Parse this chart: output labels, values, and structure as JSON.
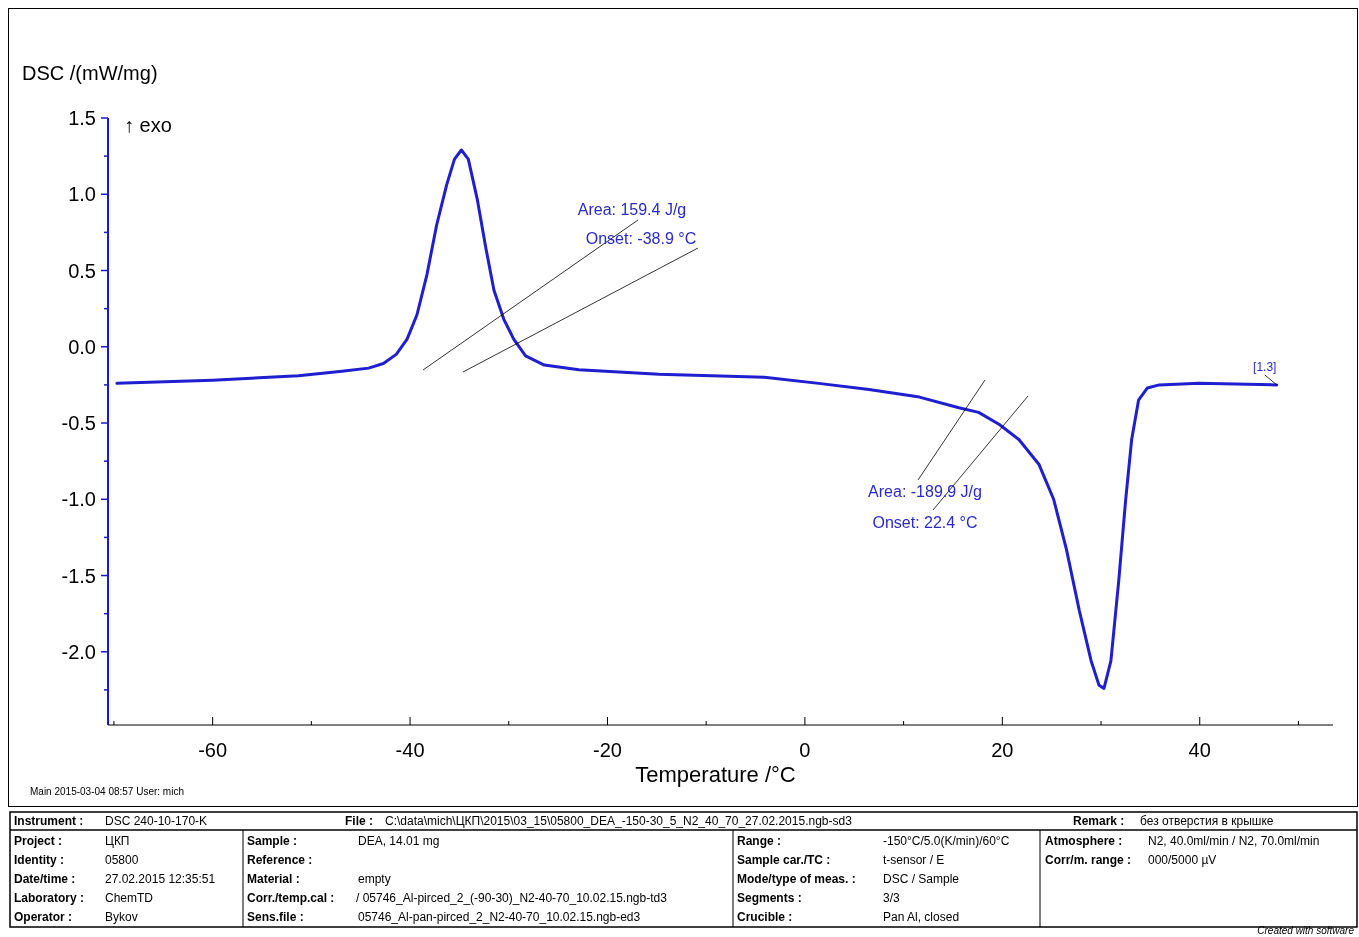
{
  "chart_data": {
    "type": "line",
    "xlabel": "Temperature /°C",
    "ylabel": "DSC /(mW/mg)",
    "xlim": [
      -70.6,
      53.5
    ],
    "ylim": [
      -2.48,
      1.5
    ],
    "xticks": [
      {
        "value": -70,
        "label": null
      },
      {
        "value": -60,
        "label": "-60"
      },
      {
        "value": -50,
        "label": null
      },
      {
        "value": -40,
        "label": "-40"
      },
      {
        "value": -30,
        "label": null
      },
      {
        "value": -20,
        "label": "-20"
      },
      {
        "value": -10,
        "label": null
      },
      {
        "value": 0,
        "label": "0"
      },
      {
        "value": 10,
        "label": null
      },
      {
        "value": 20,
        "label": "20"
      },
      {
        "value": 30,
        "label": null
      },
      {
        "value": 40,
        "label": "40"
      },
      {
        "value": 50,
        "label": null
      }
    ],
    "yticks": [
      {
        "value": -2.25,
        "label": null
      },
      {
        "value": -2.0,
        "label": "-2.0"
      },
      {
        "value": -1.75,
        "label": null
      },
      {
        "value": -1.5,
        "label": "-1.5"
      },
      {
        "value": -1.25,
        "label": null
      },
      {
        "value": -1.0,
        "label": "-1.0"
      },
      {
        "value": -0.75,
        "label": null
      },
      {
        "value": -0.5,
        "label": "-0.5"
      },
      {
        "value": -0.25,
        "label": null
      },
      {
        "value": 0,
        "label": "0.0"
      },
      {
        "value": 0.25,
        "label": null
      },
      {
        "value": 0.5,
        "label": "0.5"
      },
      {
        "value": 0.75,
        "label": null
      },
      {
        "value": 1.0,
        "label": "1.0"
      },
      {
        "value": 1.25,
        "label": null
      },
      {
        "value": 1.5,
        "label": "1.5"
      }
    ],
    "grid": false,
    "x": [
      -69.7,
      -60,
      -51.3,
      -46.9,
      -44.2,
      -42.7,
      -41.4,
      -40.3,
      -39.3,
      -38.3,
      -37.3,
      -36.3,
      -35.5,
      -34.8,
      -34.1,
      -33.2,
      -32.3,
      -31.5,
      -30.5,
      -29.5,
      -28.3,
      -26.4,
      -22.9,
      -14.8,
      -4.1,
      1.4,
      6.5,
      11.6,
      15.6,
      17.6,
      19.7,
      21.7,
      23.7,
      25.2,
      26.5,
      27.8,
      29.0,
      29.8,
      30.3,
      31.0,
      31.8,
      32.5,
      33.1,
      33.8,
      34.7,
      35.9,
      39.9,
      47.8
    ],
    "series": [
      {
        "color": "#1f1fd0",
        "values": [
          -0.24,
          -0.22,
          -0.19,
          -0.16,
          -0.14,
          -0.11,
          -0.05,
          0.05,
          0.21,
          0.47,
          0.8,
          1.06,
          1.23,
          1.29,
          1.23,
          0.97,
          0.64,
          0.37,
          0.18,
          0.05,
          -0.06,
          -0.12,
          -0.15,
          -0.18,
          -0.2,
          -0.24,
          -0.28,
          -0.33,
          -0.4,
          -0.43,
          -0.51,
          -0.61,
          -0.77,
          -1.0,
          -1.33,
          -1.73,
          -2.06,
          -2.22,
          -2.24,
          -2.06,
          -1.53,
          -1.0,
          -0.61,
          -0.35,
          -0.27,
          -0.25,
          -0.24,
          -0.25
        ]
      }
    ],
    "annotations": [
      "Area: 159.4 J/g",
      "Onset: -38.9 °C",
      "Area: -189.9 J/g",
      "Onset: 22.4 °C",
      {
        "text": "[1.3]",
        "x": 47.8,
        "y": -0.25
      },
      "↑ exo",
      "Main   2015-03-04 08:57   User: mich",
      "Instrument :",
      "DSC 240-10-170-K",
      "File :",
      "C:\\data\\mich\\ЦКП\\2015\\03_15\\05800_DEA_-150-30_5_N2_40_70_27.02.2015.ngb-sd3",
      "Remark :",
      "без отверстия в крышке",
      "Project :",
      "ЦКП",
      "Identity :",
      "05800",
      "Date/time :",
      "27.02.2015 12:35:51",
      "Laboratory :",
      "ChemTD",
      "Operator :",
      "Bykov",
      "Sample :",
      "DEA, 14.01 mg",
      "Reference :",
      "Material :",
      "empty",
      "Corr./temp.cal :",
      "/ 05746_Al-pirced_2_(-90-30)_N2-40-70_10.02.15.ngb-td3",
      "Sens.file :",
      "05746_Al-pan-pirced_2_N2-40-70_10.02.15.ngb-ed3",
      "Range :",
      "-150°C/5.0(K/min)/60°C",
      "Sample car./TC :",
      "t-sensor / E",
      "Mode/type of meas. :",
      "DSC / Sample",
      "Segments :",
      "3/3",
      "Crucible :",
      "Pan Al, closed",
      "Atmosphere :",
      "N2, 40.0ml/min / N2, 70.0ml/min",
      "Corr/m. range :",
      "000/5000 µV",
      "Created with software"
    ]
  }
}
